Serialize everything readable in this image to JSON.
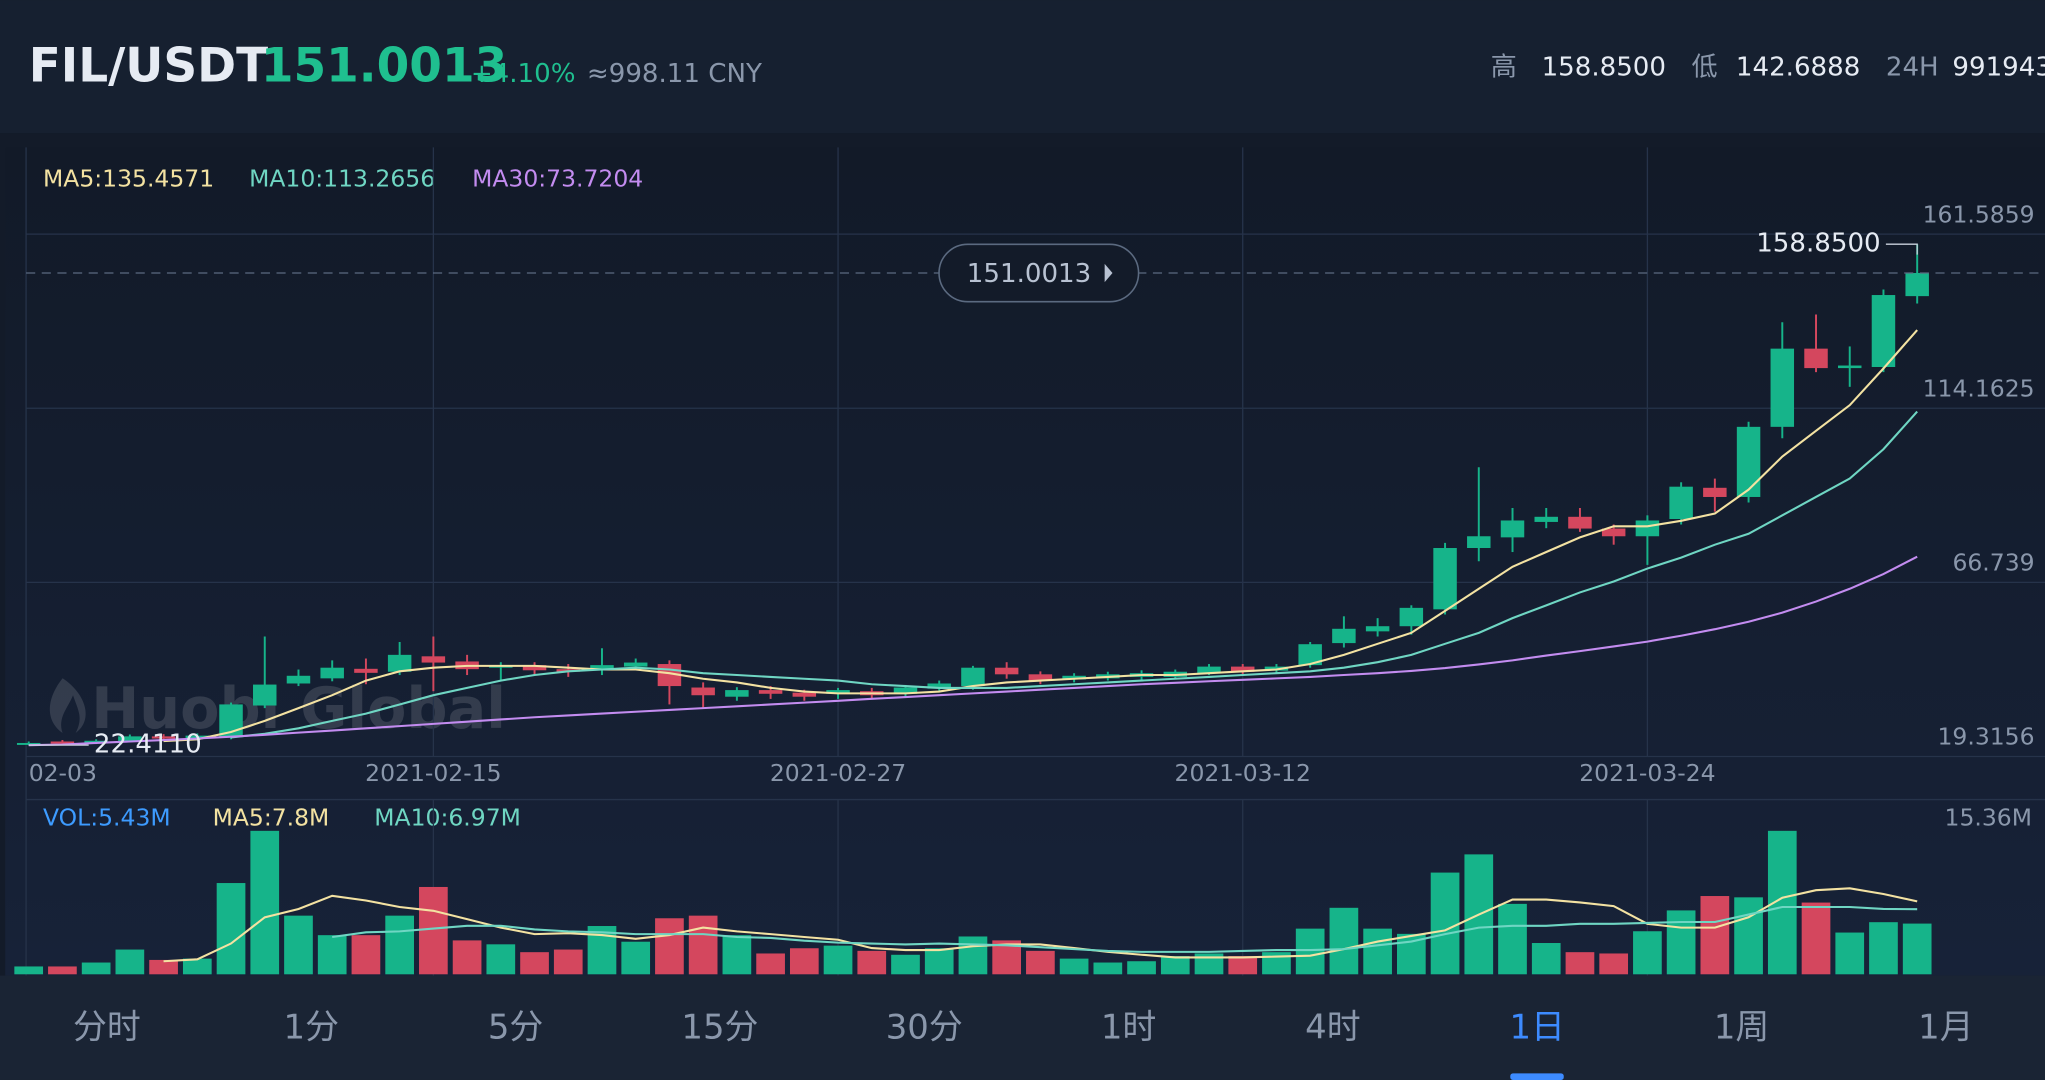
{
  "header": {
    "pair": "FIL/USDT",
    "change": "+4.10%",
    "cny": "≈998.11 CNY",
    "high_label": "高",
    "low_label": "低",
    "vol_label": "24H",
    "volume_24h": "991943"
  },
  "watermark": "Huobi Global",
  "tabs": [
    "分时",
    "1分",
    "5分",
    "15分",
    "30分",
    "1时",
    "4时",
    "1日",
    "1周",
    "1月"
  ],
  "active_tab": 7,
  "chart_data": {
    "type": "candlestick",
    "up_color": "#16b48a",
    "down_color": "#d4475e",
    "categories": [
      "02-03",
      null,
      null,
      null,
      null,
      null,
      null,
      null,
      null,
      null,
      null,
      null,
      "2021-02-15",
      null,
      null,
      null,
      null,
      null,
      null,
      null,
      null,
      null,
      null,
      null,
      "2021-02-27",
      null,
      null,
      null,
      null,
      null,
      null,
      null,
      null,
      null,
      null,
      null,
      "2021-03-12",
      null,
      null,
      null,
      null,
      null,
      null,
      null,
      null,
      null,
      null,
      null,
      "2021-03-24",
      null,
      null,
      null,
      null,
      null,
      null,
      null,
      null
    ],
    "open": [
      22.6,
      23.4,
      23.0,
      23.5,
      24.8,
      24.2,
      24.6,
      33.2,
      39.2,
      40.6,
      43.2,
      42.4,
      46.6,
      45.2,
      43.5,
      44.2,
      43.1,
      42.8,
      43.8,
      44.5,
      38.1,
      35.6,
      37.4,
      36.7,
      36.4,
      37.1,
      36.4,
      37.8,
      38.5,
      43.5,
      41.7,
      40.3,
      40.6,
      41.0,
      41.0,
      42.0,
      43.8,
      42.7,
      44.2,
      50.2,
      53.4,
      54.8,
      59.4,
      76.1,
      79.0,
      83.2,
      84.6,
      81.4,
      79.3,
      84.0,
      92.5,
      90.0,
      109.1,
      130.4,
      125.1,
      125.4,
      144.7
    ],
    "high": [
      23.4,
      23.8,
      24.0,
      25.3,
      25.4,
      25.6,
      34.0,
      52.0,
      43.0,
      45.5,
      46.0,
      50.5,
      52.0,
      47.0,
      45.0,
      45.0,
      44.5,
      48.8,
      46.0,
      45.5,
      39.5,
      38.2,
      38.5,
      37.5,
      38.0,
      38.0,
      38.8,
      40.0,
      44.0,
      45.0,
      42.5,
      42.0,
      42.4,
      42.8,
      43.0,
      44.5,
      44.5,
      44.5,
      50.5,
      57.5,
      57.0,
      60.5,
      77.5,
      98.1,
      87.0,
      87.0,
      87.0,
      82.5,
      85.0,
      94.0,
      95.0,
      110.5,
      137.6,
      139.7,
      131.0,
      146.5,
      158.85
    ],
    "low": [
      22.411,
      22.5,
      22.7,
      23.2,
      23.8,
      23.9,
      24.0,
      32.5,
      38.5,
      39.8,
      39.0,
      41.5,
      37.1,
      41.5,
      40.0,
      41.5,
      41.0,
      41.5,
      42.8,
      33.5,
      32.5,
      34.5,
      35.0,
      34.5,
      35.0,
      35.0,
      35.3,
      37.0,
      37.5,
      40.5,
      39.0,
      39.5,
      40.0,
      40.2,
      40.5,
      41.5,
      41.5,
      42.0,
      43.5,
      49.0,
      52.0,
      52.5,
      58.0,
      72.5,
      75.0,
      81.5,
      80.5,
      77.0,
      71.5,
      82.5,
      86.0,
      88.5,
      106.0,
      124.0,
      120.0,
      124.0,
      142.6888
    ],
    "close": [
      23.0,
      22.8,
      23.6,
      24.8,
      24.2,
      25.0,
      33.5,
      38.9,
      41.3,
      43.5,
      42.1,
      47.0,
      44.9,
      43.1,
      44.2,
      42.8,
      42.4,
      44.2,
      44.9,
      38.5,
      36.0,
      37.4,
      36.4,
      35.6,
      37.4,
      36.0,
      38.1,
      39.2,
      43.5,
      41.7,
      39.9,
      41.3,
      41.7,
      42.0,
      42.4,
      43.8,
      42.4,
      43.8,
      49.9,
      54.1,
      54.8,
      59.8,
      76.1,
      79.3,
      83.6,
      84.6,
      81.4,
      79.3,
      83.6,
      92.8,
      90.0,
      109.1,
      130.4,
      125.1,
      125.8,
      145.0,
      151.0013
    ],
    "ma": [
      {
        "name": "MA5",
        "label": "MA5:135.4571",
        "color": "#f3e2a2",
        "values": [
          null,
          null,
          null,
          null,
          23.5,
          24,
          26,
          29,
          32.5,
          36,
          40,
          42.5,
          43.5,
          44,
          44,
          44,
          43.5,
          43,
          43,
          42,
          40.5,
          39.5,
          38,
          37,
          36.5,
          36.5,
          36.5,
          37,
          38.5,
          39.5,
          40,
          40.5,
          41,
          41.5,
          41.5,
          42,
          42.5,
          43,
          44.5,
          47,
          50,
          53,
          59,
          65,
          71,
          75,
          79,
          82,
          82,
          83.5,
          85.5,
          92,
          101,
          108,
          115,
          125,
          135.4571
        ]
      },
      {
        "name": "MA10",
        "label": "MA10:113.2656",
        "color": "#6fd6c3",
        "values": [
          null,
          null,
          null,
          null,
          null,
          null,
          24.5,
          25.5,
          27,
          29,
          31,
          33.5,
          36,
          38,
          40,
          41.5,
          42.5,
          43,
          43.5,
          43,
          42,
          41.5,
          41,
          40.5,
          40,
          39,
          38.5,
          38,
          38,
          38,
          38.5,
          39,
          39.5,
          40,
          40.5,
          41,
          41.5,
          42,
          42.5,
          43.5,
          45,
          47,
          50,
          53,
          57,
          60.5,
          64,
          67,
          70.5,
          73.5,
          77,
          80,
          85,
          90,
          95,
          103,
          113.2656
        ]
      },
      {
        "name": "MA30",
        "label": "MA30:73.7204",
        "color": "#c38cf0",
        "values": [
          22.4,
          22.6,
          23,
          23.4,
          23.8,
          24.2,
          24.7,
          25.2,
          25.8,
          26.4,
          27,
          27.6,
          28.2,
          28.8,
          29.4,
          30,
          30.5,
          31,
          31.5,
          32,
          32.5,
          33,
          33.5,
          34,
          34.5,
          35,
          35.5,
          36,
          36.5,
          37,
          37.5,
          38,
          38.5,
          39,
          39.4,
          39.8,
          40.2,
          40.6,
          41,
          41.5,
          42,
          42.6,
          43.4,
          44.4,
          45.5,
          46.8,
          48,
          49.3,
          50.6,
          52.2,
          54,
          56,
          58.5,
          61.5,
          65,
          69,
          73.7204
        ]
      }
    ],
    "ylim": [
      19.3156,
      185.2
    ],
    "yticks": [
      19.3156,
      66.739,
      114.1625,
      161.5859
    ],
    "grid": true,
    "current_price": 151.0013,
    "high_marker": {
      "value": 158.85,
      "label": "158.8500"
    },
    "low_marker": {
      "value": 22.411,
      "label": "22.4110"
    },
    "volume": {
      "label": "VOL:5.43M",
      "values": [
        0.84,
        0.84,
        1.26,
        2.65,
        1.54,
        1.68,
        9.77,
        15.36,
        6.28,
        4.19,
        4.19,
        6.28,
        9.35,
        3.63,
        3.21,
        2.37,
        2.65,
        5.17,
        3.49,
        6.0,
        6.28,
        4.19,
        2.23,
        2.79,
        3.07,
        2.51,
        2.09,
        2.79,
        4.05,
        3.63,
        2.51,
        1.68,
        1.26,
        1.4,
        1.95,
        2.23,
        1.95,
        2.37,
        4.89,
        7.12,
        4.89,
        4.33,
        10.89,
        12.84,
        7.54,
        3.35,
        2.37,
        2.23,
        4.61,
        6.84,
        8.38,
        8.24,
        15.36,
        7.68,
        4.47,
        5.58,
        5.43
      ],
      "ylim": [
        0,
        15.36
      ],
      "yticks": [
        {
          "value": 15.36,
          "label": "15.36M"
        }
      ],
      "ma": [
        {
          "name": "MA5",
          "label": "MA5:7.8M",
          "color": "#f3e2a2",
          "values": [
            null,
            null,
            null,
            null,
            1.4,
            1.6,
            3.3,
            6.1,
            7.0,
            8.4,
            7.9,
            7.2,
            6.8,
            5.9,
            5.0,
            4.3,
            4.4,
            4.2,
            3.8,
            4.2,
            5.0,
            4.6,
            4.3,
            4.0,
            3.7,
            2.8,
            2.6,
            2.6,
            3.0,
            3.2,
            3.2,
            2.8,
            2.4,
            2.1,
            1.8,
            1.8,
            1.8,
            1.9,
            2.0,
            2.7,
            3.5,
            4.1,
            4.7,
            6.4,
            8.0,
            8.0,
            7.7,
            7.3,
            5.4,
            5.0,
            5.0,
            6.1,
            8.2,
            9.0,
            9.2,
            8.6,
            7.8
          ]
        },
        {
          "name": "MA10",
          "label": "MA10:6.97M",
          "color": "#6fd6c3",
          "values": [
            null,
            null,
            null,
            null,
            null,
            null,
            null,
            null,
            null,
            4.0,
            4.5,
            4.6,
            4.9,
            5.2,
            5.2,
            4.8,
            4.6,
            4.5,
            4.3,
            4.3,
            4.3,
            4.0,
            3.9,
            3.6,
            3.4,
            3.3,
            3.2,
            3.3,
            3.2,
            3.1,
            2.9,
            2.7,
            2.5,
            2.4,
            2.4,
            2.4,
            2.5,
            2.6,
            2.6,
            2.7,
            3.1,
            3.5,
            4.3,
            5.0,
            5.2,
            5.2,
            5.4,
            5.4,
            5.5,
            5.6,
            5.6,
            6.4,
            7.2,
            7.2,
            7.2,
            7.0,
            6.97
          ]
        }
      ]
    }
  }
}
